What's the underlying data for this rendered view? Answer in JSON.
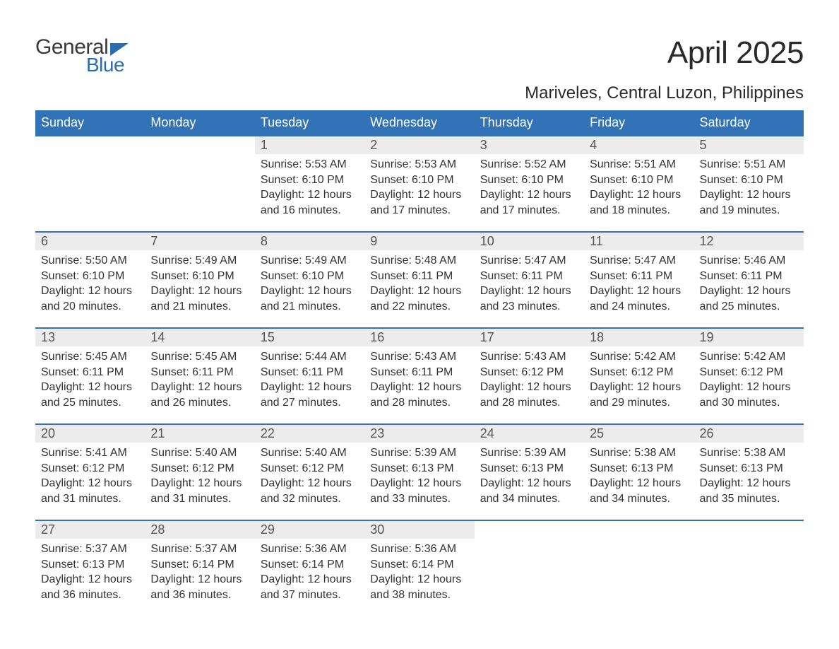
{
  "brand": {
    "general": "General",
    "blue": "Blue",
    "accent": "#2b6cb0"
  },
  "title": "April 2025",
  "location": "Mariveles, Central Luzon, Philippines",
  "colors": {
    "header_bg": "#3273b8",
    "header_text": "#ffffff",
    "daynum_bg": "#ececec",
    "daynum_border": "#3273b8",
    "body_text": "#333333",
    "daynum_text": "#555555",
    "page_bg": "#ffffff"
  },
  "day_headers": [
    "Sunday",
    "Monday",
    "Tuesday",
    "Wednesday",
    "Thursday",
    "Friday",
    "Saturday"
  ],
  "weeks": [
    [
      null,
      null,
      {
        "n": "1",
        "sunrise": "Sunrise: 5:53 AM",
        "sunset": "Sunset: 6:10 PM",
        "daylight": "Daylight: 12 hours and 16 minutes."
      },
      {
        "n": "2",
        "sunrise": "Sunrise: 5:53 AM",
        "sunset": "Sunset: 6:10 PM",
        "daylight": "Daylight: 12 hours and 17 minutes."
      },
      {
        "n": "3",
        "sunrise": "Sunrise: 5:52 AM",
        "sunset": "Sunset: 6:10 PM",
        "daylight": "Daylight: 12 hours and 17 minutes."
      },
      {
        "n": "4",
        "sunrise": "Sunrise: 5:51 AM",
        "sunset": "Sunset: 6:10 PM",
        "daylight": "Daylight: 12 hours and 18 minutes."
      },
      {
        "n": "5",
        "sunrise": "Sunrise: 5:51 AM",
        "sunset": "Sunset: 6:10 PM",
        "daylight": "Daylight: 12 hours and 19 minutes."
      }
    ],
    [
      {
        "n": "6",
        "sunrise": "Sunrise: 5:50 AM",
        "sunset": "Sunset: 6:10 PM",
        "daylight": "Daylight: 12 hours and 20 minutes."
      },
      {
        "n": "7",
        "sunrise": "Sunrise: 5:49 AM",
        "sunset": "Sunset: 6:10 PM",
        "daylight": "Daylight: 12 hours and 21 minutes."
      },
      {
        "n": "8",
        "sunrise": "Sunrise: 5:49 AM",
        "sunset": "Sunset: 6:10 PM",
        "daylight": "Daylight: 12 hours and 21 minutes."
      },
      {
        "n": "9",
        "sunrise": "Sunrise: 5:48 AM",
        "sunset": "Sunset: 6:11 PM",
        "daylight": "Daylight: 12 hours and 22 minutes."
      },
      {
        "n": "10",
        "sunrise": "Sunrise: 5:47 AM",
        "sunset": "Sunset: 6:11 PM",
        "daylight": "Daylight: 12 hours and 23 minutes."
      },
      {
        "n": "11",
        "sunrise": "Sunrise: 5:47 AM",
        "sunset": "Sunset: 6:11 PM",
        "daylight": "Daylight: 12 hours and 24 minutes."
      },
      {
        "n": "12",
        "sunrise": "Sunrise: 5:46 AM",
        "sunset": "Sunset: 6:11 PM",
        "daylight": "Daylight: 12 hours and 25 minutes."
      }
    ],
    [
      {
        "n": "13",
        "sunrise": "Sunrise: 5:45 AM",
        "sunset": "Sunset: 6:11 PM",
        "daylight": "Daylight: 12 hours and 25 minutes."
      },
      {
        "n": "14",
        "sunrise": "Sunrise: 5:45 AM",
        "sunset": "Sunset: 6:11 PM",
        "daylight": "Daylight: 12 hours and 26 minutes."
      },
      {
        "n": "15",
        "sunrise": "Sunrise: 5:44 AM",
        "sunset": "Sunset: 6:11 PM",
        "daylight": "Daylight: 12 hours and 27 minutes."
      },
      {
        "n": "16",
        "sunrise": "Sunrise: 5:43 AM",
        "sunset": "Sunset: 6:11 PM",
        "daylight": "Daylight: 12 hours and 28 minutes."
      },
      {
        "n": "17",
        "sunrise": "Sunrise: 5:43 AM",
        "sunset": "Sunset: 6:12 PM",
        "daylight": "Daylight: 12 hours and 28 minutes."
      },
      {
        "n": "18",
        "sunrise": "Sunrise: 5:42 AM",
        "sunset": "Sunset: 6:12 PM",
        "daylight": "Daylight: 12 hours and 29 minutes."
      },
      {
        "n": "19",
        "sunrise": "Sunrise: 5:42 AM",
        "sunset": "Sunset: 6:12 PM",
        "daylight": "Daylight: 12 hours and 30 minutes."
      }
    ],
    [
      {
        "n": "20",
        "sunrise": "Sunrise: 5:41 AM",
        "sunset": "Sunset: 6:12 PM",
        "daylight": "Daylight: 12 hours and 31 minutes."
      },
      {
        "n": "21",
        "sunrise": "Sunrise: 5:40 AM",
        "sunset": "Sunset: 6:12 PM",
        "daylight": "Daylight: 12 hours and 31 minutes."
      },
      {
        "n": "22",
        "sunrise": "Sunrise: 5:40 AM",
        "sunset": "Sunset: 6:12 PM",
        "daylight": "Daylight: 12 hours and 32 minutes."
      },
      {
        "n": "23",
        "sunrise": "Sunrise: 5:39 AM",
        "sunset": "Sunset: 6:13 PM",
        "daylight": "Daylight: 12 hours and 33 minutes."
      },
      {
        "n": "24",
        "sunrise": "Sunrise: 5:39 AM",
        "sunset": "Sunset: 6:13 PM",
        "daylight": "Daylight: 12 hours and 34 minutes."
      },
      {
        "n": "25",
        "sunrise": "Sunrise: 5:38 AM",
        "sunset": "Sunset: 6:13 PM",
        "daylight": "Daylight: 12 hours and 34 minutes."
      },
      {
        "n": "26",
        "sunrise": "Sunrise: 5:38 AM",
        "sunset": "Sunset: 6:13 PM",
        "daylight": "Daylight: 12 hours and 35 minutes."
      }
    ],
    [
      {
        "n": "27",
        "sunrise": "Sunrise: 5:37 AM",
        "sunset": "Sunset: 6:13 PM",
        "daylight": "Daylight: 12 hours and 36 minutes."
      },
      {
        "n": "28",
        "sunrise": "Sunrise: 5:37 AM",
        "sunset": "Sunset: 6:14 PM",
        "daylight": "Daylight: 12 hours and 36 minutes."
      },
      {
        "n": "29",
        "sunrise": "Sunrise: 5:36 AM",
        "sunset": "Sunset: 6:14 PM",
        "daylight": "Daylight: 12 hours and 37 minutes."
      },
      {
        "n": "30",
        "sunrise": "Sunrise: 5:36 AM",
        "sunset": "Sunset: 6:14 PM",
        "daylight": "Daylight: 12 hours and 38 minutes."
      },
      null,
      null,
      null
    ]
  ]
}
